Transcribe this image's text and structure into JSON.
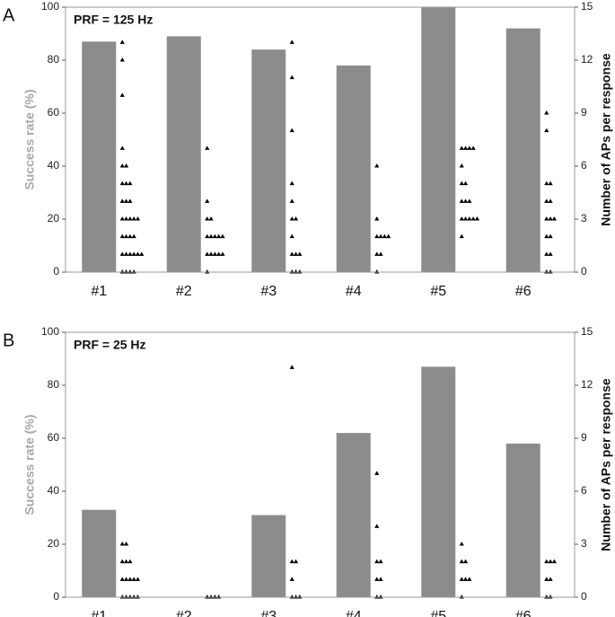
{
  "chart_data": [
    {
      "type": "bar",
      "panel_label": "A",
      "annotation": "PRF = 125 Hz",
      "categories": [
        "#1",
        "#2",
        "#3",
        "#4",
        "#5",
        "#6"
      ],
      "values": [
        87,
        89,
        84,
        78,
        100,
        92
      ],
      "color": "#8c8c8c",
      "ylabel": "Success rate (%)",
      "y2label": "Number of APs per response",
      "ylim": [
        0,
        100
      ],
      "yticks": [
        0,
        20,
        40,
        60,
        80,
        100
      ],
      "y2lim": [
        0,
        15
      ],
      "y2ticks": [
        0,
        3,
        6,
        9,
        12,
        15
      ],
      "points_color": "#000000",
      "y2_points": [
        [
          13,
          12,
          10,
          7,
          6,
          6,
          5,
          5,
          5,
          4,
          4,
          4,
          3,
          3,
          3,
          3,
          3,
          2,
          2,
          2,
          2,
          1,
          1,
          1,
          1,
          1,
          1,
          0,
          0,
          0,
          0
        ],
        [
          7,
          4,
          3,
          3,
          2,
          2,
          2,
          2,
          2,
          1,
          1,
          1,
          1,
          1,
          0
        ],
        [
          13,
          11,
          8,
          5,
          4,
          3,
          3,
          2,
          1,
          1,
          1,
          0,
          0,
          0
        ],
        [
          6,
          3,
          2,
          2,
          2,
          2,
          1,
          1,
          0
        ],
        [
          7,
          7,
          7,
          7,
          6,
          5,
          5,
          4,
          4,
          4,
          3,
          3,
          3,
          3,
          3,
          2
        ],
        [
          9,
          8,
          5,
          5,
          4,
          4,
          3,
          3,
          3,
          2,
          2,
          1,
          1,
          0,
          0
        ]
      ]
    },
    {
      "type": "bar",
      "panel_label": "B",
      "annotation": "PRF = 25 Hz",
      "categories": [
        "#1",
        "#2",
        "#3",
        "#4",
        "#5",
        "#6"
      ],
      "values": [
        33,
        0,
        31,
        62,
        87,
        58
      ],
      "color": "#8c8c8c",
      "ylabel": "Success rate (%)",
      "y2label": "Number of APs per response",
      "ylim": [
        0,
        100
      ],
      "yticks": [
        0,
        20,
        40,
        60,
        80,
        100
      ],
      "y2lim": [
        0,
        15
      ],
      "y2ticks": [
        0,
        3,
        6,
        9,
        12,
        15
      ],
      "points_color": "#000000",
      "y2_points": [
        [
          3,
          3,
          2,
          2,
          2,
          1,
          1,
          1,
          1,
          1,
          0,
          0,
          0,
          0,
          0
        ],
        [
          0,
          0,
          0,
          0
        ],
        [
          13,
          2,
          2,
          1,
          0,
          0,
          0
        ],
        [
          7,
          4,
          2,
          2,
          1,
          1,
          0,
          0
        ],
        [
          3,
          2,
          2,
          1,
          1,
          1,
          0
        ],
        [
          2,
          2,
          2,
          1,
          1,
          0,
          0
        ]
      ]
    }
  ]
}
